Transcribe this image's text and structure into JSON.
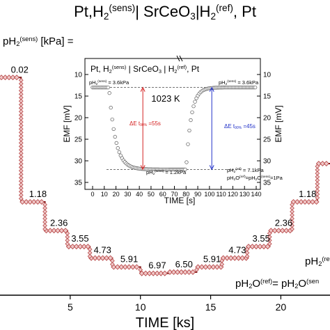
{
  "chart_data": [
    {
      "type": "line",
      "title": {
        "base": "Pt,H",
        "sub": "2",
        "sup": "(sens)",
        "mid": "| SrCeO",
        "sub2": "3",
        "mid2": "|H",
        "sub3": "2",
        "sup3": "(ref)",
        "end": ", Pt"
      },
      "xlabel": "TIME [ks]",
      "xlim": [
        0,
        23.5
      ],
      "ylim": [
        0,
        36
      ],
      "y_reversed": true,
      "grid": false,
      "x_ticks": [
        5,
        10,
        15,
        20
      ],
      "x_tick_labels": [
        "5",
        "10",
        "15",
        "20"
      ],
      "series_label": {
        "base": "pH",
        "sub": "2",
        "sup": "(sens)",
        "end": " [kPa] ="
      },
      "step_labels": [
        "0.02",
        "1.18",
        "2.36",
        "3.55",
        "4.73",
        "5.91",
        "6.97",
        "6.50",
        "5.91",
        "4.73",
        "3.55",
        "2.36",
        "1.18"
      ],
      "step_label_x": [
        1.4,
        2.7,
        4.2,
        5.7,
        7.3,
        9.2,
        11.2,
        13.1,
        15.1,
        16.9,
        18.6,
        20.2,
        21.9
      ],
      "steps": [
        {
          "x0": 0.0,
          "x1": 1.5,
          "y": 4.5
        },
        {
          "x0": 1.5,
          "x1": 3.2,
          "y": 24.0
        },
        {
          "x0": 3.2,
          "x1": 4.8,
          "y": 28.5
        },
        {
          "x0": 4.8,
          "x1": 6.4,
          "y": 31.0
        },
        {
          "x0": 6.4,
          "x1": 8.0,
          "y": 32.8
        },
        {
          "x0": 8.0,
          "x1": 10.0,
          "y": 34.2
        },
        {
          "x0": 10.0,
          "x1": 12.0,
          "y": 35.2
        },
        {
          "x0": 12.0,
          "x1": 14.0,
          "y": 35.0
        },
        {
          "x0": 14.0,
          "x1": 15.8,
          "y": 34.2
        },
        {
          "x0": 15.8,
          "x1": 17.6,
          "y": 32.8
        },
        {
          "x0": 17.6,
          "x1": 19.2,
          "y": 31.0
        },
        {
          "x0": 19.2,
          "x1": 20.8,
          "y": 28.5
        },
        {
          "x0": 20.8,
          "x1": 22.6,
          "y": 24.0
        },
        {
          "x0": 22.6,
          "x1": 23.5,
          "y": 18.0
        }
      ],
      "annotation_right_1": {
        "base": "pH",
        "sub": "2",
        "sup": "(ref)"
      },
      "annotation_right_2": {
        "base": "pH",
        "sub": "2",
        "end1": "O",
        "sup": "(ref)",
        "eq": "= pH",
        "sub2": "2",
        "end2": "O",
        "sup2": "(sen"
      }
    },
    {
      "type": "scatter",
      "title": {
        "base": "Pt, H",
        "sub": "2",
        "sup": "(sens)",
        "mid": " | SrCeO",
        "sub2": "3",
        "mid2": " | H",
        "sub3": "2",
        "sup3": "(ref)",
        "end": ", Pt"
      },
      "xlabel": "TIME [s]",
      "ylabel": "EMF [mV]",
      "ylabel_right": "EMF [mV]",
      "xlim": [
        0,
        140
      ],
      "ylim": [
        10,
        35
      ],
      "y_reversed": true,
      "x_ticks": [
        0,
        10,
        20,
        30,
        40,
        50,
        60,
        70,
        80,
        90,
        100,
        110,
        120,
        130,
        140
      ],
      "x_tick_labels": [
        "0",
        "10",
        "20",
        "30",
        "40",
        "50",
        "60",
        "70",
        "80",
        "90",
        "100",
        "110",
        "120",
        "130",
        "140"
      ],
      "y_ticks": [
        10,
        15,
        20,
        25,
        30,
        35
      ],
      "y_tick_labels": [
        "10",
        "15",
        "20",
        "25",
        "30",
        "35"
      ],
      "temperature": "1023 K",
      "label_start_left": {
        "base": "pH",
        "sub": "2",
        "sup": "(sens)",
        "end": " = 3.6kPa"
      },
      "label_start_right": {
        "base": "pH",
        "sub": "2",
        "sup": "(sens)",
        "end": " = 3.6kPa"
      },
      "label_low_left": {
        "base": "pH",
        "sub": "2",
        "sup": "(sens)",
        "end": " = 1.2kPa"
      },
      "label_low_right_1": {
        "base": "pH",
        "sub": "2",
        "sup": "(ref)",
        "end": " = 7.1kPa"
      },
      "label_low_right_2": {
        "base": "pH",
        "sub": "2",
        "end1": "O",
        "sup": "(ref)",
        "eq": "=pH",
        "sub2": "2",
        "end2": "O",
        "sup2": "(sens)",
        "end": "=1Pa"
      },
      "delta_left": {
        "prefix": "ΔE  t",
        "sub": "90%",
        "end": " =55s"
      },
      "delta_right": {
        "prefix": "ΔE  t",
        "sub": "90%",
        "end": " =45s"
      },
      "high_level": 13.0,
      "low_level": 32.0,
      "drop_start": 14,
      "drop_tau": 13,
      "rise_start": 80,
      "rise_tau": 10,
      "point_step": 1.2,
      "color_left_marker": "#d42020",
      "color_right_marker": "#2030c8"
    }
  ],
  "colors": {
    "step_line": "#7a1010",
    "step_fill": "#f0c8c8",
    "step_edge": "#b84a4a",
    "inset_points": "#555555"
  }
}
